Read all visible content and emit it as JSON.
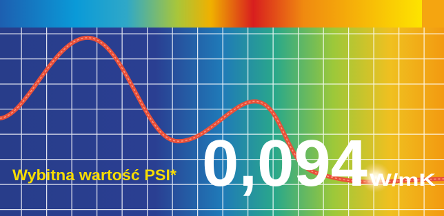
{
  "banner": {
    "tagline": "Wybitna wartość PSI*",
    "value": "0,094",
    "unit": "W/mK"
  }
}
